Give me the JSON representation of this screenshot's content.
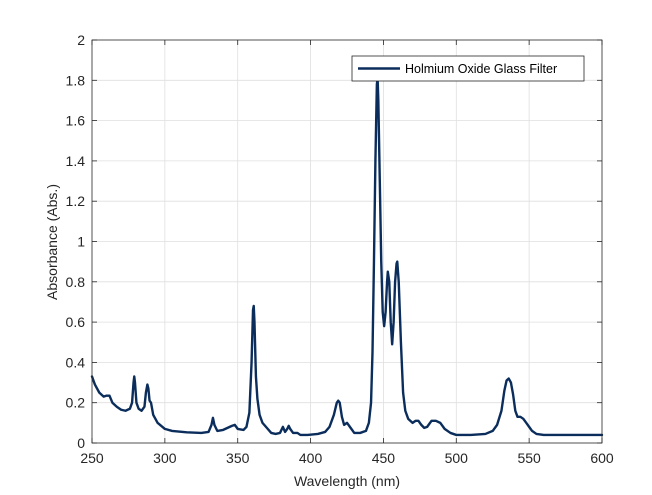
{
  "chart_data": {
    "type": "line",
    "title": "",
    "xlabel": "Wavelength (nm)",
    "ylabel": "Absorbance (Abs.)",
    "xlim": [
      250,
      600
    ],
    "ylim": [
      0,
      2
    ],
    "x_ticks": [
      250,
      300,
      350,
      400,
      450,
      500,
      550,
      600
    ],
    "y_ticks": [
      0,
      0.2,
      0.4,
      0.6,
      0.8,
      1,
      1.2,
      1.4,
      1.6,
      1.8,
      2
    ],
    "x_tick_labels": [
      "250",
      "300",
      "350",
      "400",
      "450",
      "500",
      "550",
      "600"
    ],
    "y_tick_labels": [
      "0",
      "0.2",
      "0.4",
      "0.6",
      "0.8",
      "1",
      "1.2",
      "1.4",
      "1.6",
      "1.8",
      "2"
    ],
    "grid": true,
    "legend_position": "top-right",
    "series": [
      {
        "name": "Holmium Oxide Glass Filter",
        "color": "#0b2d5c",
        "points": [
          [
            250,
            0.33
          ],
          [
            252,
            0.29
          ],
          [
            255,
            0.25
          ],
          [
            258,
            0.23
          ],
          [
            260,
            0.235
          ],
          [
            262,
            0.235
          ],
          [
            264,
            0.2
          ],
          [
            267,
            0.18
          ],
          [
            270,
            0.165
          ],
          [
            273,
            0.16
          ],
          [
            276,
            0.17
          ],
          [
            277.5,
            0.2
          ],
          [
            278.5,
            0.3
          ],
          [
            279,
            0.33
          ],
          [
            279.5,
            0.3
          ],
          [
            280.5,
            0.2
          ],
          [
            282,
            0.17
          ],
          [
            284,
            0.16
          ],
          [
            286,
            0.18
          ],
          [
            287,
            0.25
          ],
          [
            288,
            0.29
          ],
          [
            288.7,
            0.27
          ],
          [
            289.5,
            0.21
          ],
          [
            290.5,
            0.2
          ],
          [
            292,
            0.14
          ],
          [
            295,
            0.1
          ],
          [
            300,
            0.07
          ],
          [
            305,
            0.06
          ],
          [
            315,
            0.053
          ],
          [
            325,
            0.05
          ],
          [
            330,
            0.055
          ],
          [
            332,
            0.09
          ],
          [
            333,
            0.125
          ],
          [
            334,
            0.09
          ],
          [
            336,
            0.06
          ],
          [
            340,
            0.065
          ],
          [
            343,
            0.075
          ],
          [
            346,
            0.085
          ],
          [
            348,
            0.09
          ],
          [
            350,
            0.07
          ],
          [
            354,
            0.065
          ],
          [
            356,
            0.08
          ],
          [
            358,
            0.15
          ],
          [
            359.5,
            0.4
          ],
          [
            360.5,
            0.66
          ],
          [
            361,
            0.68
          ],
          [
            361.5,
            0.6
          ],
          [
            362.5,
            0.33
          ],
          [
            363.5,
            0.22
          ],
          [
            365,
            0.14
          ],
          [
            367,
            0.1
          ],
          [
            370,
            0.075
          ],
          [
            373,
            0.05
          ],
          [
            376,
            0.045
          ],
          [
            379,
            0.05
          ],
          [
            381,
            0.08
          ],
          [
            382.5,
            0.055
          ],
          [
            384,
            0.07
          ],
          [
            385,
            0.085
          ],
          [
            386,
            0.07
          ],
          [
            388,
            0.05
          ],
          [
            391,
            0.05
          ],
          [
            393,
            0.04
          ],
          [
            398,
            0.04
          ],
          [
            405,
            0.045
          ],
          [
            410,
            0.055
          ],
          [
            413,
            0.08
          ],
          [
            416,
            0.14
          ],
          [
            418,
            0.2
          ],
          [
            419,
            0.21
          ],
          [
            420,
            0.2
          ],
          [
            421.5,
            0.13
          ],
          [
            423,
            0.09
          ],
          [
            425,
            0.1
          ],
          [
            427,
            0.08
          ],
          [
            430,
            0.05
          ],
          [
            434,
            0.05
          ],
          [
            438,
            0.06
          ],
          [
            440,
            0.1
          ],
          [
            441.5,
            0.2
          ],
          [
            442.5,
            0.45
          ],
          [
            443.5,
            0.9
          ],
          [
            444.5,
            1.4
          ],
          [
            445.5,
            1.78
          ],
          [
            446,
            1.81
          ],
          [
            446.5,
            1.7
          ],
          [
            447.5,
            1.3
          ],
          [
            448.5,
            0.9
          ],
          [
            449.5,
            0.65
          ],
          [
            450.5,
            0.58
          ],
          [
            451.5,
            0.65
          ],
          [
            452.5,
            0.8
          ],
          [
            453,
            0.85
          ],
          [
            454,
            0.8
          ],
          [
            455,
            0.6
          ],
          [
            456,
            0.49
          ],
          [
            457,
            0.6
          ],
          [
            458,
            0.8
          ],
          [
            459,
            0.89
          ],
          [
            459.5,
            0.9
          ],
          [
            460.5,
            0.8
          ],
          [
            462,
            0.5
          ],
          [
            463.5,
            0.25
          ],
          [
            465,
            0.16
          ],
          [
            467,
            0.12
          ],
          [
            470,
            0.1
          ],
          [
            472,
            0.11
          ],
          [
            474,
            0.11
          ],
          [
            476,
            0.09
          ],
          [
            478,
            0.075
          ],
          [
            480,
            0.08
          ],
          [
            483,
            0.11
          ],
          [
            486,
            0.11
          ],
          [
            489,
            0.1
          ],
          [
            492,
            0.07
          ],
          [
            496,
            0.05
          ],
          [
            500,
            0.04
          ],
          [
            510,
            0.04
          ],
          [
            520,
            0.045
          ],
          [
            525,
            0.06
          ],
          [
            528,
            0.09
          ],
          [
            531,
            0.16
          ],
          [
            533,
            0.26
          ],
          [
            534.5,
            0.31
          ],
          [
            536,
            0.32
          ],
          [
            537.5,
            0.3
          ],
          [
            539,
            0.24
          ],
          [
            540.5,
            0.16
          ],
          [
            542,
            0.13
          ],
          [
            544,
            0.13
          ],
          [
            546,
            0.12
          ],
          [
            548,
            0.1
          ],
          [
            550,
            0.08
          ],
          [
            552,
            0.06
          ],
          [
            555,
            0.045
          ],
          [
            560,
            0.04
          ],
          [
            570,
            0.04
          ],
          [
            580,
            0.04
          ],
          [
            590,
            0.04
          ],
          [
            600,
            0.04
          ]
        ]
      }
    ]
  }
}
